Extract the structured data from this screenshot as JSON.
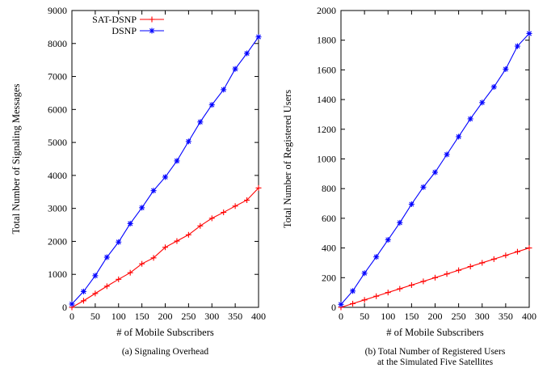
{
  "chart_data": [
    {
      "type": "line",
      "caption": "(a) Signaling Overhead",
      "xlabel": "# of Mobile Subscribers",
      "ylabel": "Total Number of Signaling Messages",
      "xlim": [
        0,
        400
      ],
      "ylim": [
        0,
        9000
      ],
      "xticks": [
        0,
        50,
        100,
        150,
        200,
        250,
        300,
        350,
        400
      ],
      "yticks": [
        0,
        1000,
        2000,
        3000,
        4000,
        5000,
        6000,
        7000,
        8000,
        9000
      ],
      "grid": false,
      "legend_position": "top-left",
      "x": [
        0,
        25,
        50,
        75,
        100,
        125,
        150,
        175,
        200,
        225,
        250,
        275,
        300,
        325,
        350,
        375,
        400
      ],
      "series": [
        {
          "name": "SAT-DSNP",
          "color": "#ff0000",
          "marker": "plus",
          "values": [
            0,
            200,
            420,
            640,
            850,
            1050,
            1320,
            1500,
            1820,
            2010,
            2200,
            2470,
            2700,
            2880,
            3070,
            3250,
            3620
          ]
        },
        {
          "name": "DSNP",
          "color": "#0000ff",
          "marker": "star",
          "values": [
            100,
            480,
            960,
            1520,
            1980,
            2540,
            3020,
            3540,
            3950,
            4440,
            5030,
            5620,
            6140,
            6600,
            7230,
            7700,
            8200
          ]
        }
      ]
    },
    {
      "type": "line",
      "caption": "(b) Total Number of Registered Users",
      "caption_line2": "at the Simulated Five Satellites",
      "xlabel": "# of Mobile Subscribers",
      "ylabel": "Total Number of Registered Users",
      "xlim": [
        0,
        400
      ],
      "ylim": [
        0,
        2000
      ],
      "xticks": [
        0,
        50,
        100,
        150,
        200,
        250,
        300,
        350,
        400
      ],
      "yticks": [
        0,
        200,
        400,
        600,
        800,
        1000,
        1200,
        1400,
        1600,
        1800,
        2000
      ],
      "grid": false,
      "x": [
        0,
        25,
        50,
        75,
        100,
        125,
        150,
        175,
        200,
        225,
        250,
        275,
        300,
        325,
        350,
        375,
        400
      ],
      "series": [
        {
          "color": "#ff0000",
          "marker": "plus",
          "values": [
            0,
            25,
            50,
            75,
            100,
            125,
            150,
            175,
            200,
            225,
            250,
            275,
            300,
            325,
            350,
            375,
            400
          ]
        },
        {
          "color": "#0000ff",
          "marker": "star",
          "values": [
            20,
            110,
            230,
            340,
            455,
            570,
            695,
            810,
            910,
            1030,
            1150,
            1270,
            1380,
            1485,
            1605,
            1760,
            1845
          ]
        }
      ]
    }
  ]
}
